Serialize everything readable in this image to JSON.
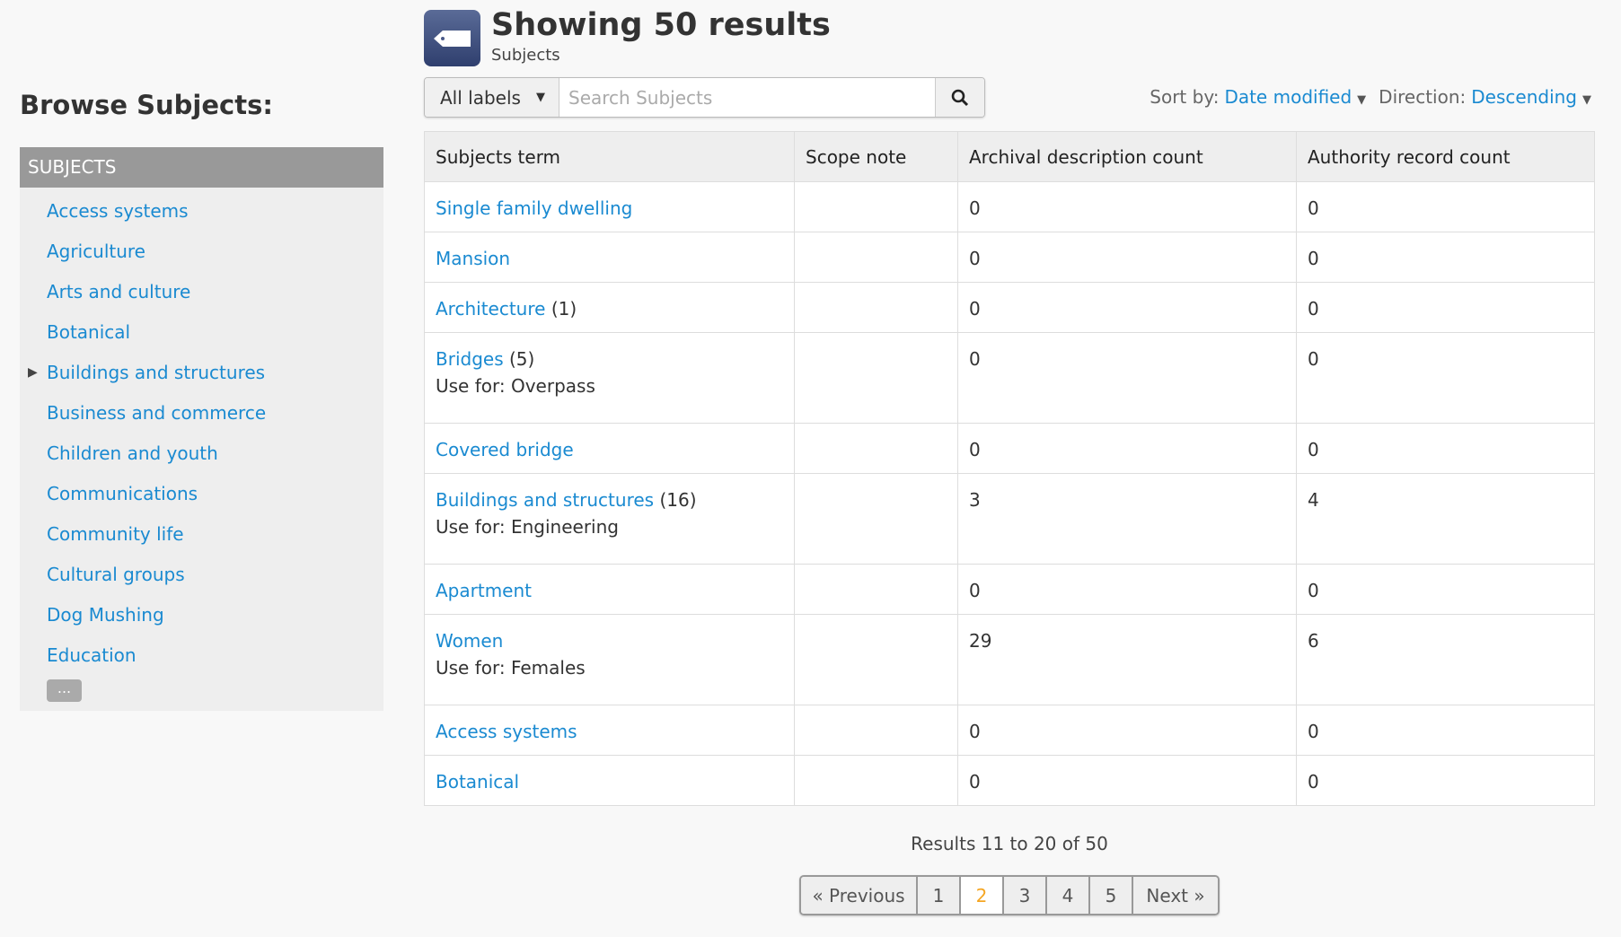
{
  "sidebar": {
    "title": "Browse Subjects:",
    "header": "SUBJECTS",
    "items": [
      {
        "label": "Access systems",
        "expandable": false
      },
      {
        "label": "Agriculture",
        "expandable": false
      },
      {
        "label": "Arts and culture",
        "expandable": false
      },
      {
        "label": "Botanical",
        "expandable": false
      },
      {
        "label": "Buildings and structures",
        "expandable": true
      },
      {
        "label": "Business and commerce",
        "expandable": false
      },
      {
        "label": "Children and youth",
        "expandable": false
      },
      {
        "label": "Communications",
        "expandable": false
      },
      {
        "label": "Community life",
        "expandable": false
      },
      {
        "label": "Cultural groups",
        "expandable": false
      },
      {
        "label": "Dog Mushing",
        "expandable": false
      },
      {
        "label": "Education",
        "expandable": false
      }
    ],
    "more_label": "..."
  },
  "header": {
    "title": "Showing 50 results",
    "subtitle": "Subjects",
    "icon": "tag-icon"
  },
  "search": {
    "dropdown_label": "All labels",
    "placeholder": "Search Subjects",
    "value": ""
  },
  "sort": {
    "sort_label": "Sort by:",
    "sort_value": "Date modified",
    "direction_label": "Direction:",
    "direction_value": "Descending"
  },
  "table": {
    "columns": [
      "Subjects term",
      "Scope note",
      "Archival description count",
      "Authority record count"
    ],
    "rows": [
      {
        "term": "Single family dwelling",
        "count": "",
        "use_for": "",
        "scope": "",
        "archival": "0",
        "authority": "0"
      },
      {
        "term": "Mansion",
        "count": "",
        "use_for": "",
        "scope": "",
        "archival": "0",
        "authority": "0"
      },
      {
        "term": "Architecture",
        "count": "(1)",
        "use_for": "",
        "scope": "",
        "archival": "0",
        "authority": "0"
      },
      {
        "term": "Bridges",
        "count": "(5)",
        "use_for": "Use for: Overpass",
        "scope": "",
        "archival": "0",
        "authority": "0"
      },
      {
        "term": "Covered bridge",
        "count": "",
        "use_for": "",
        "scope": "",
        "archival": "0",
        "authority": "0"
      },
      {
        "term": "Buildings and structures",
        "count": "(16)",
        "use_for": "Use for: Engineering",
        "scope": "",
        "archival": "3",
        "authority": "4"
      },
      {
        "term": "Apartment",
        "count": "",
        "use_for": "",
        "scope": "",
        "archival": "0",
        "authority": "0"
      },
      {
        "term": "Women",
        "count": "",
        "use_for": "Use for: Females",
        "scope": "",
        "archival": "29",
        "authority": "6"
      },
      {
        "term": "Access systems",
        "count": "",
        "use_for": "",
        "scope": "",
        "archival": "0",
        "authority": "0"
      },
      {
        "term": "Botanical",
        "count": "",
        "use_for": "",
        "scope": "",
        "archival": "0",
        "authority": "0"
      }
    ]
  },
  "pagination": {
    "summary": "Results 11 to 20 of 50",
    "previous": "« Previous",
    "next": "Next »",
    "pages": [
      "1",
      "2",
      "3",
      "4",
      "5"
    ],
    "current": "2"
  },
  "colors": {
    "link": "#1a8ad1",
    "active_page": "#f5a623",
    "sidebar_header": "#999999"
  }
}
